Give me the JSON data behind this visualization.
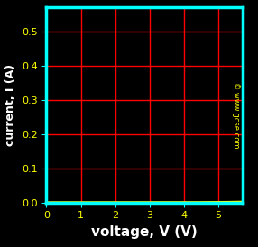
{
  "title": "",
  "xlabel": "voltage, V (V)",
  "ylabel": "current, I (A)",
  "background_color": "#000000",
  "plot_bg_color": "#000000",
  "axis_color": "#00ffff",
  "grid_color": "#ff0000",
  "tick_label_color": "#ffff00",
  "axis_label_color": "#ffffff",
  "curve_color": "#ffff00",
  "watermark": "© www.gcse.com",
  "watermark_color": "#ffff00",
  "xlim": [
    0,
    5.7
  ],
  "ylim": [
    0,
    0.57
  ],
  "xticks": [
    0,
    1,
    2,
    3,
    4,
    5
  ],
  "yticks": [
    0.0,
    0.1,
    0.2,
    0.3,
    0.4,
    0.5
  ],
  "diode_I0": 1e-06,
  "diode_Vt": 0.77,
  "diode_n": 1.0,
  "curve_linewidth": 2.0,
  "grid_linewidth": 1.0,
  "spine_linewidth": 2.5,
  "tick_label_fontsize": 8,
  "axis_label_fontsize": 10,
  "watermark_fontsize": 6,
  "xlabel_fontsize": 11,
  "ylabel_fontsize": 9
}
